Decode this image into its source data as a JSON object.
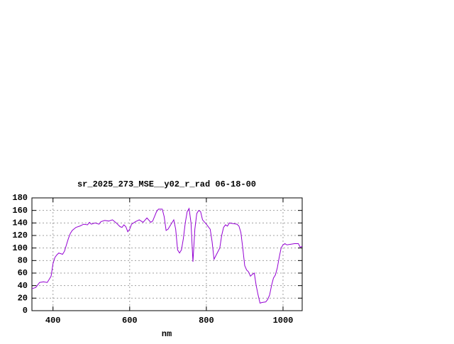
{
  "chart_data": {
    "type": "line",
    "title": "sr_2025_273_MSE__y02_r_rad 06-18-00",
    "x_label": "nm",
    "x": [
      345,
      355,
      365,
      375,
      385,
      390,
      395,
      400,
      405,
      410,
      415,
      420,
      425,
      430,
      435,
      440,
      445,
      450,
      460,
      470,
      480,
      490,
      495,
      500,
      510,
      520,
      525,
      535,
      545,
      555,
      565,
      575,
      580,
      585,
      590,
      595,
      600,
      605,
      615,
      625,
      635,
      645,
      655,
      660,
      670,
      675,
      685,
      690,
      695,
      700,
      705,
      715,
      720,
      725,
      730,
      735,
      740,
      745,
      750,
      755,
      760,
      765,
      770,
      775,
      780,
      785,
      790,
      800,
      810,
      815,
      820,
      825,
      835,
      840,
      845,
      850,
      855,
      860,
      870,
      880,
      885,
      890,
      895,
      900,
      905,
      910,
      915,
      920,
      925,
      930,
      935,
      940,
      945,
      955,
      960,
      965,
      970,
      975,
      980,
      985,
      990,
      995,
      1000,
      1005,
      1010,
      1020,
      1030,
      1040,
      1045,
      1050
    ],
    "series": [
      {
        "name": "r_rad",
        "color": "#9400d3",
        "values": [
          35,
          37,
          45,
          46,
          45,
          50,
          55,
          75,
          85,
          89,
          92,
          91,
          90,
          95,
          105,
          115,
          123,
          128,
          133,
          135,
          138,
          137,
          141,
          138,
          140,
          138,
          142,
          144,
          143,
          145,
          140,
          134,
          133,
          137,
          134,
          126,
          130,
          138,
          142,
          145,
          141,
          148,
          141,
          143,
          158,
          162,
          162,
          150,
          128,
          130,
          135,
          145,
          130,
          97,
          92,
          97,
          115,
          140,
          158,
          163,
          140,
          78,
          130,
          155,
          160,
          158,
          145,
          138,
          130,
          110,
          82,
          88,
          100,
          120,
          133,
          137,
          135,
          140,
          139,
          138,
          135,
          125,
          100,
          72,
          65,
          62,
          55,
          58,
          60,
          40,
          25,
          12,
          13,
          14,
          18,
          25,
          40,
          52,
          57,
          68,
          85,
          100,
          105,
          107,
          105,
          106,
          107,
          107,
          101,
          103
        ]
      }
    ],
    "xlim": [
      345,
      1050
    ],
    "ylim": [
      0,
      180
    ],
    "xticks": [
      400,
      600,
      800,
      1000
    ],
    "yticks": [
      0,
      20,
      40,
      60,
      80,
      100,
      120,
      140,
      160,
      180
    ],
    "grid": true
  }
}
